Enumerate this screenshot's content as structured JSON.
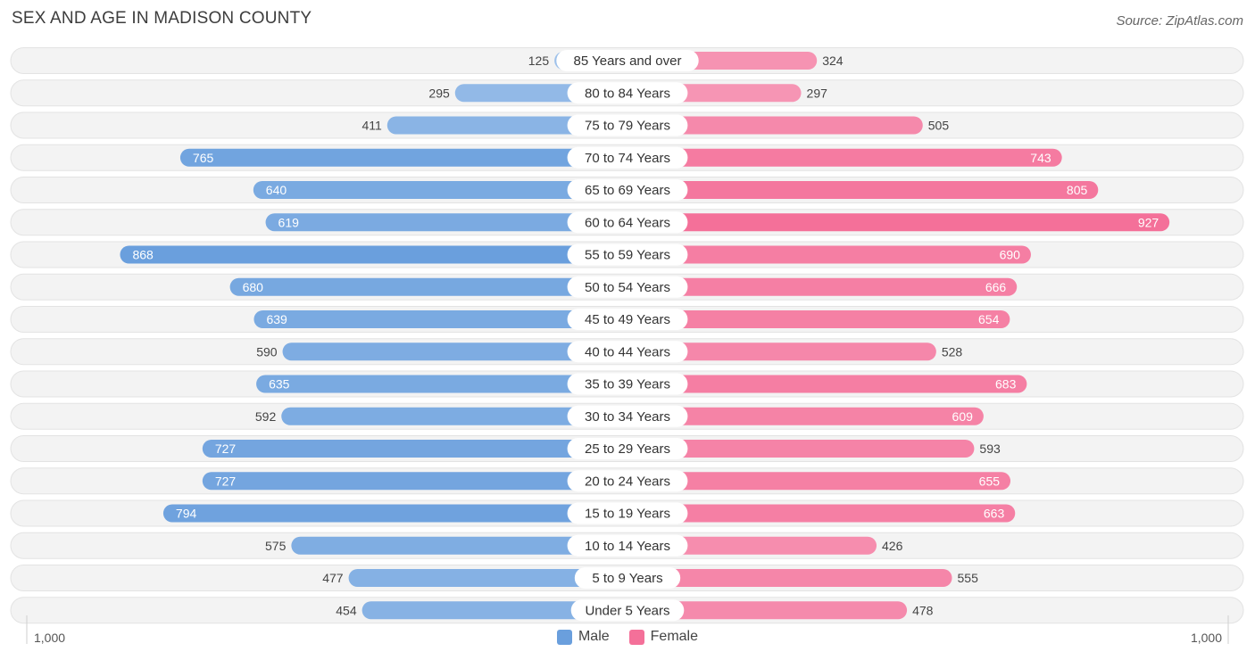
{
  "title": "SEX AND AGE IN MADISON COUNTY",
  "source": "Source: ZipAtlas.com",
  "legend": {
    "male_label": "Male",
    "female_label": "Female"
  },
  "axis": {
    "left_label": "1,000",
    "right_label": "1,000"
  },
  "colors": {
    "male": "#6a9fdd",
    "male_light": "#a7c7ec",
    "female": "#f47099",
    "female_light": "#f7a6c0",
    "row_bg": "#efefef"
  },
  "chart_data": {
    "type": "bar",
    "orientation": "horizontal-diverging",
    "max": 1000,
    "categories": [
      "85 Years and over",
      "80 to 84 Years",
      "75 to 79 Years",
      "70 to 74 Years",
      "65 to 69 Years",
      "60 to 64 Years",
      "55 to 59 Years",
      "50 to 54 Years",
      "45 to 49 Years",
      "40 to 44 Years",
      "35 to 39 Years",
      "30 to 34 Years",
      "25 to 29 Years",
      "20 to 24 Years",
      "15 to 19 Years",
      "10 to 14 Years",
      "5 to 9 Years",
      "Under 5 Years"
    ],
    "series": [
      {
        "name": "Male",
        "values": [
          125,
          295,
          411,
          765,
          640,
          619,
          868,
          680,
          639,
          590,
          635,
          592,
          727,
          727,
          794,
          575,
          477,
          454
        ]
      },
      {
        "name": "Female",
        "values": [
          324,
          297,
          505,
          743,
          805,
          927,
          690,
          666,
          654,
          528,
          683,
          609,
          593,
          655,
          663,
          426,
          555,
          478
        ]
      }
    ],
    "legend_position": "bottom-center"
  }
}
